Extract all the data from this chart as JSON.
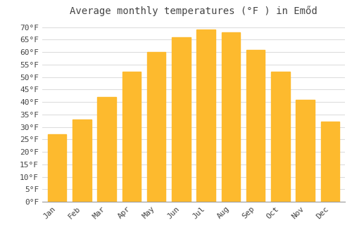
{
  "title": "Average monthly temperatures (°F ) in Emőd",
  "months": [
    "Jan",
    "Feb",
    "Mar",
    "Apr",
    "May",
    "Jun",
    "Jul",
    "Aug",
    "Sep",
    "Oct",
    "Nov",
    "Dec"
  ],
  "values": [
    27,
    33,
    42,
    52,
    60,
    66,
    69,
    68,
    61,
    52,
    41,
    32
  ],
  "bar_color": "#FDBA2E",
  "bar_edge_color": "#FDBA2E",
  "background_color": "#ffffff",
  "grid_color": "#dddddd",
  "text_color": "#444444",
  "ylim": [
    0,
    72
  ],
  "yticks": [
    0,
    5,
    10,
    15,
    20,
    25,
    30,
    35,
    40,
    45,
    50,
    55,
    60,
    65,
    70
  ],
  "title_fontsize": 10,
  "tick_fontsize": 8
}
